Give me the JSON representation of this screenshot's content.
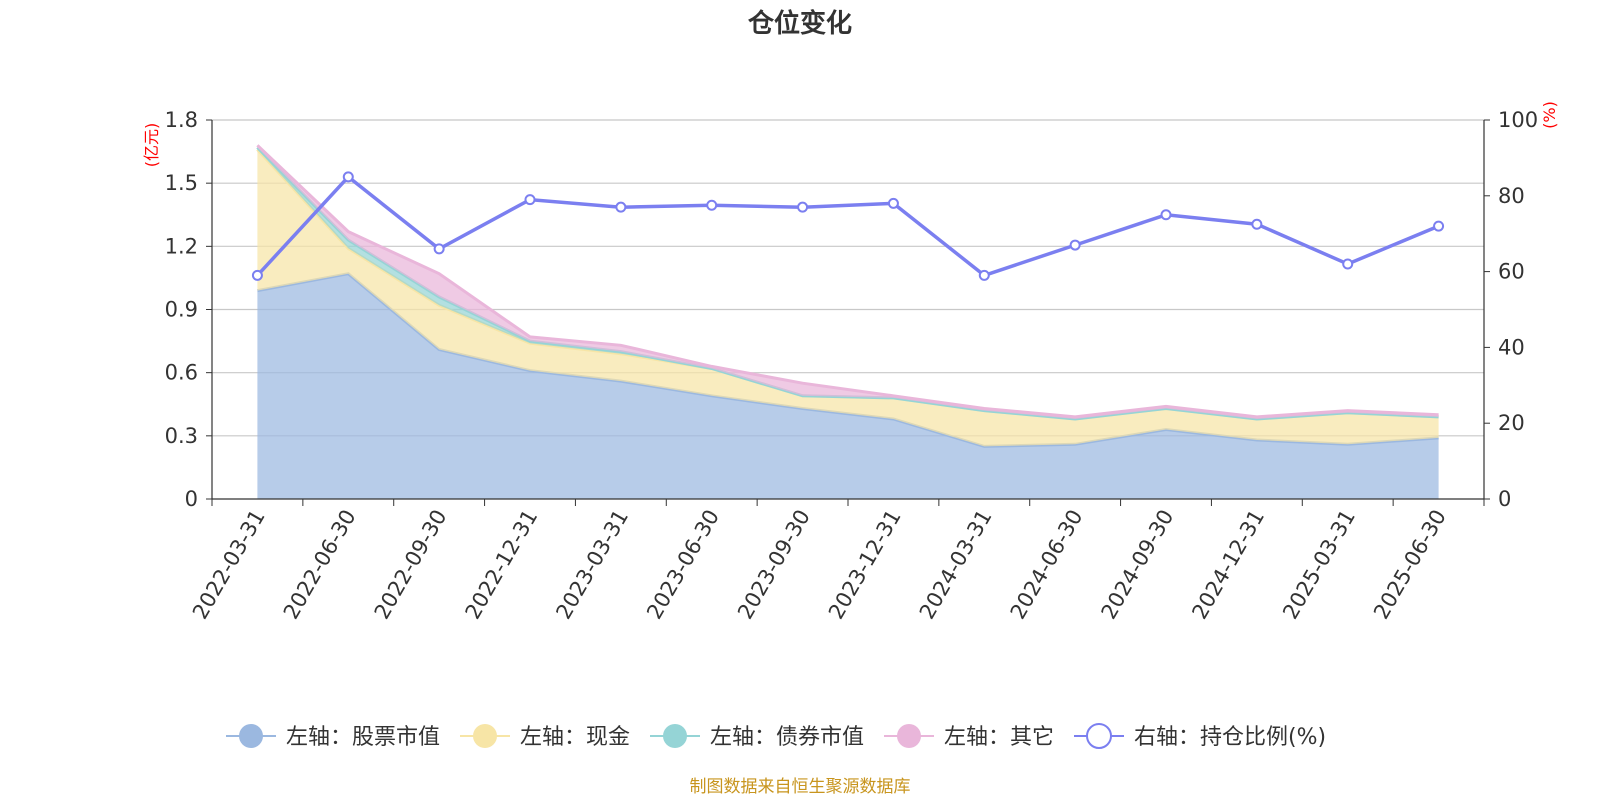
{
  "chart_data": {
    "type": "area",
    "title": "仓位变化",
    "left_axis_unit": "(亿元)",
    "right_axis_unit": "(%)",
    "left_ylim": [
      0,
      1.8
    ],
    "left_ticks": [
      "0",
      "0.3",
      "0.6",
      "0.9",
      "1.2",
      "1.5",
      "1.8"
    ],
    "right_ylim": [
      0,
      100
    ],
    "right_ticks": [
      "0",
      "20",
      "40",
      "60",
      "80",
      "100"
    ],
    "categories": [
      "2022-03-31",
      "2022-06-30",
      "2022-09-30",
      "2022-12-31",
      "2023-03-31",
      "2023-06-30",
      "2023-09-30",
      "2023-12-31",
      "2024-03-31",
      "2024-06-30",
      "2024-09-30",
      "2024-12-31",
      "2025-03-31",
      "2025-06-30"
    ],
    "series": [
      {
        "name": "左轴：股票市值",
        "axis": "left",
        "kind": "stacked-area",
        "color": "#9bb8e0",
        "values": [
          0.99,
          1.07,
          0.71,
          0.61,
          0.56,
          0.49,
          0.43,
          0.38,
          0.25,
          0.26,
          0.33,
          0.28,
          0.26,
          0.29
        ]
      },
      {
        "name": "左轴：现金",
        "axis": "left",
        "kind": "stacked-area",
        "color": "#f7e5a6",
        "values": [
          0.67,
          0.12,
          0.21,
          0.13,
          0.13,
          0.13,
          0.06,
          0.1,
          0.17,
          0.12,
          0.1,
          0.1,
          0.15,
          0.1
        ]
      },
      {
        "name": "左轴：债券市值",
        "axis": "left",
        "kind": "stacked-area",
        "color": "#95d4d6",
        "values": [
          0.01,
          0.04,
          0.04,
          0.01,
          0.01,
          0,
          0,
          0,
          0,
          0,
          0,
          0,
          0,
          0
        ]
      },
      {
        "name": "左轴：其它",
        "axis": "left",
        "kind": "stacked-area",
        "color": "#e9b6da",
        "values": [
          0.01,
          0.04,
          0.11,
          0.02,
          0.03,
          0.01,
          0.06,
          0.01,
          0.01,
          0.01,
          0.01,
          0.01,
          0.01,
          0.01
        ]
      },
      {
        "name": "右轴：持仓比例(%)",
        "axis": "right",
        "kind": "line",
        "color": "#7b7ff0",
        "values": [
          59,
          85,
          66,
          79,
          77,
          77.5,
          77,
          78,
          59,
          67,
          75,
          72.5,
          62,
          72
        ]
      }
    ],
    "grid": true,
    "legend_position": "bottom"
  },
  "source_text": "制图数据来自恒生聚源数据库"
}
